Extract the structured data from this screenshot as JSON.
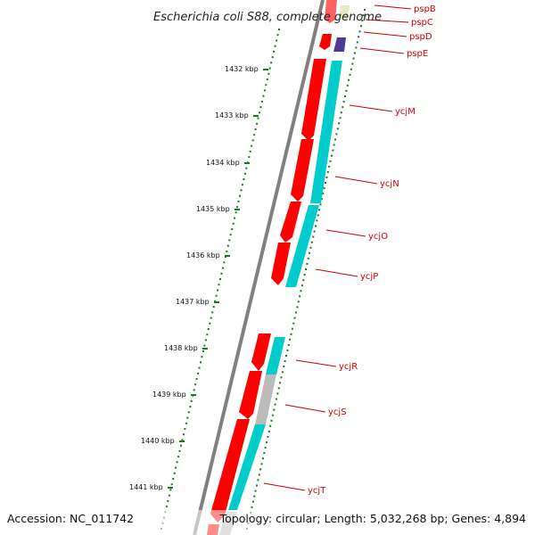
{
  "title": "Escherichia coli S88, complete genome",
  "footer": {
    "accession": "Accession: NC_011742",
    "topology": "Topology: circular; Length: 5,032,268 bp; Genes: 4,894"
  },
  "colors": {
    "backbone": "#808080",
    "tick": "#1a7a1a",
    "forward_gene": "#ff0000",
    "cds": "#00cccc",
    "other": "#bbbbbb",
    "purple": "#4b3a9a",
    "label": "#cc0000"
  },
  "kbp_labels": [
    "1432 kbp",
    "1433 kbp",
    "1434 kbp",
    "1435 kbp",
    "1436 kbp",
    "1437 kbp",
    "1438 kbp",
    "1439 kbp",
    "1440 kbp",
    "1441 kbp"
  ],
  "genes": [
    "pspB",
    "pspC",
    "pspD",
    "pspE",
    "ycjM",
    "ycjN",
    "ycjO",
    "ycjP",
    "ycjR",
    "ycjS",
    "ycjT"
  ]
}
